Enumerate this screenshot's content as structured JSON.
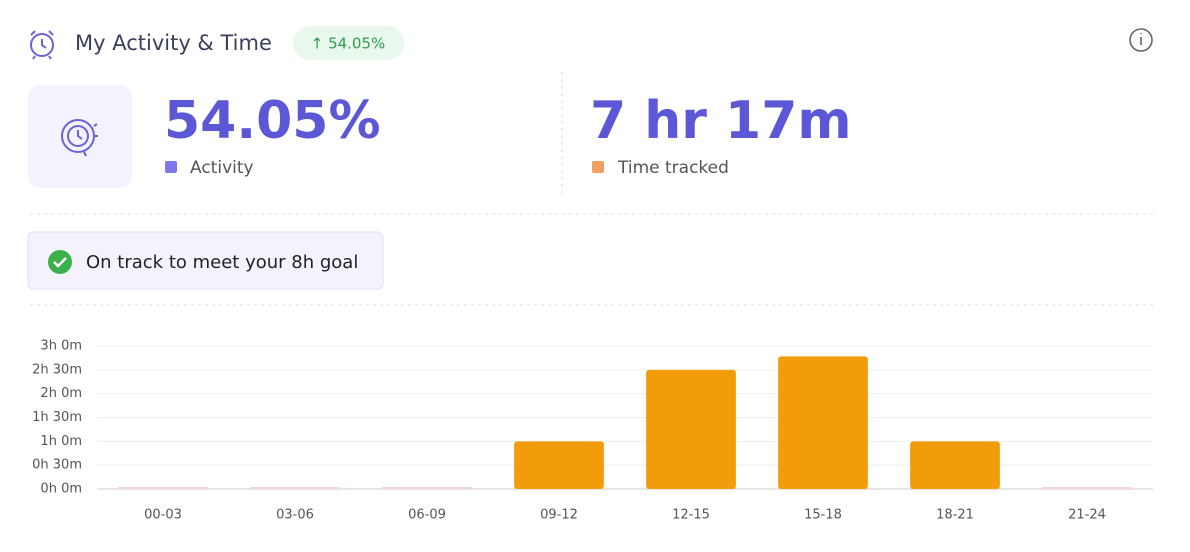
{
  "header": {
    "title": "My Activity & Time",
    "badge": "↑ 54.05%"
  },
  "stats": {
    "activity": {
      "value": "54.05%",
      "label": "Activity"
    },
    "time": {
      "value": "7 hr 17m",
      "label": "Time tracked"
    }
  },
  "goal": "On track to meet your 8h goal",
  "chart_data": {
    "type": "bar",
    "categories": [
      "00-03",
      "03-06",
      "06-09",
      "09-12",
      "12-15",
      "15-18",
      "18-21",
      "21-24"
    ],
    "values": [
      0,
      0,
      0,
      60,
      150,
      167,
      60,
      0
    ],
    "color": "#f39c0b",
    "ylim": [
      0,
      180
    ],
    "yticks": [
      {
        "value": 0,
        "label": "0h 0m"
      },
      {
        "value": 30,
        "label": "0h 30m"
      },
      {
        "value": 60,
        "label": "1h 0m"
      },
      {
        "value": 90,
        "label": "1h 30m"
      },
      {
        "value": 120,
        "label": "2h 0m"
      },
      {
        "value": 150,
        "label": "2h 30m"
      },
      {
        "value": 180,
        "label": "3h 0m"
      }
    ],
    "grid": true
  }
}
